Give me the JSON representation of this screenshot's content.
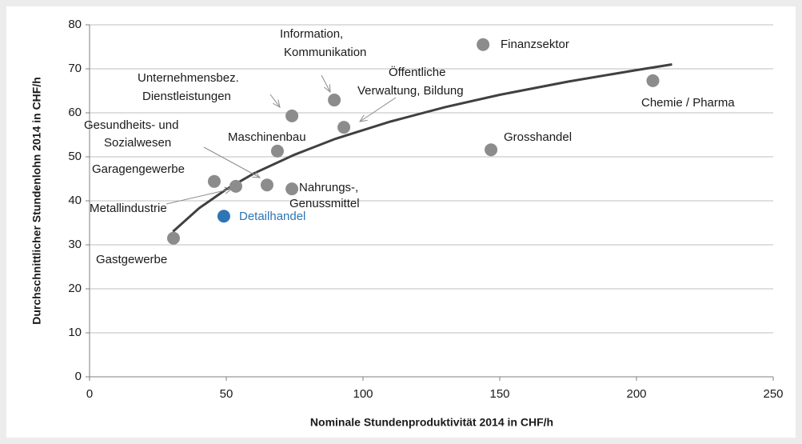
{
  "chart_data": {
    "type": "scatter",
    "x_label": "Nominale Stundenproduktivität 2014 in CHF/h",
    "y_label": "Durchschnittlicher Stundenlohn 2014 in CHF/h",
    "labels": [
      [
        "Gastgewerbe"
      ],
      [
        "Detailhandel"
      ],
      [
        "Metallindustrie"
      ],
      [
        "Garagengewerbe"
      ],
      [
        "Gesundheits- und",
        "Sozialwesen"
      ],
      [
        "Nahrungs-,",
        "Genussmittel"
      ],
      [
        "Maschinenbau"
      ],
      [
        "Unternehmensbez.",
        "Dienstleistungen"
      ],
      [
        "Information,",
        "Kommunikation"
      ],
      [
        "Öffentliche",
        "Verwaltung, Bildung"
      ],
      [
        "Grosshandel"
      ],
      [
        "Finanzsektor"
      ],
      [
        "Chemie / Pharma"
      ]
    ],
    "x": [
      30.7,
      49.1,
      53.5,
      45.6,
      64.9,
      74,
      68.7,
      74,
      89.5,
      93,
      146.8,
      143.9,
      206
    ],
    "values": [
      31.5,
      36.5,
      43.3,
      44.4,
      43.6,
      42.7,
      51.3,
      59.3,
      62.9,
      56.7,
      51.6,
      75.5,
      67.3
    ],
    "point_colors": [
      "#8c8c8c",
      "#2e75b6",
      "#8c8c8c",
      "#8c8c8c",
      "#8c8c8c",
      "#8c8c8c",
      "#8c8c8c",
      "#8c8c8c",
      "#8c8c8c",
      "#8c8c8c",
      "#8c8c8c",
      "#8c8c8c",
      "#8c8c8c"
    ],
    "trendline": {
      "color": "#404040",
      "x": [
        30.5,
        40,
        50,
        60,
        75,
        90,
        110,
        130,
        150,
        175,
        200,
        213
      ],
      "values": [
        33.0,
        38.3,
        42.6,
        46.2,
        50.5,
        54.1,
        58.0,
        61.3,
        64.1,
        67.1,
        69.7,
        71.0
      ]
    },
    "xlim": [
      0,
      250
    ],
    "xticks": [
      0,
      50,
      100,
      150,
      200,
      250
    ],
    "ylim": [
      0,
      80
    ],
    "yticks": [
      0,
      10,
      20,
      30,
      40,
      50,
      60,
      70,
      80
    ],
    "grid": true
  }
}
